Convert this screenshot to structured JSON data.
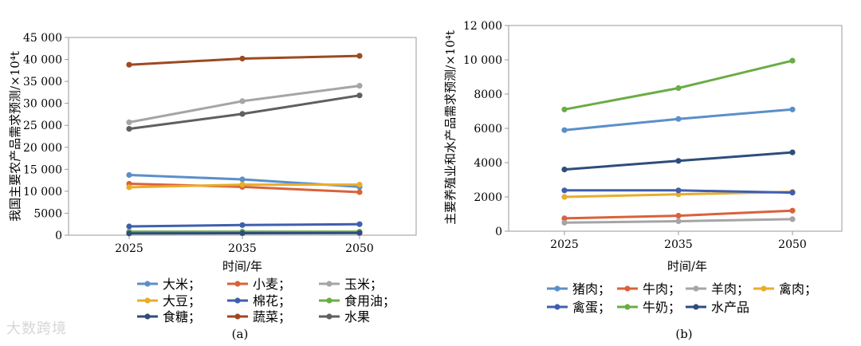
{
  "chart_data": [
    {
      "type": "line",
      "panel_label": "(a)",
      "title": "",
      "xlabel": "时间/年",
      "ylabel": "我国主要农产品需求预测/×10⁴t",
      "x": [
        2025,
        2035,
        2050
      ],
      "x_tick_labels": [
        "2025",
        "2035",
        "2050"
      ],
      "ylim": [
        0,
        45000
      ],
      "y_ticks": [
        0,
        5000,
        10000,
        15000,
        20000,
        25000,
        30000,
        35000,
        40000,
        45000
      ],
      "y_tick_labels": [
        "0",
        "5000",
        "10 000",
        "15 000",
        "20 000",
        "25 000",
        "30 000",
        "35 000",
        "40 000",
        "45 000"
      ],
      "legend_columns": 3,
      "series": [
        {
          "name": "大米；",
          "color": "#5b8fc9",
          "values": [
            13700,
            12700,
            11000
          ]
        },
        {
          "name": "小麦；",
          "color": "#d9623b",
          "values": [
            11700,
            11000,
            9800
          ]
        },
        {
          "name": "玉米；",
          "color": "#a5a5a5",
          "values": [
            25700,
            30500,
            34000
          ]
        },
        {
          "name": "大豆；",
          "color": "#e8ad2a",
          "values": [
            10900,
            11500,
            11500
          ]
        },
        {
          "name": "棉花；",
          "color": "#3f5fae",
          "values": [
            2000,
            2300,
            2500
          ]
        },
        {
          "name": "食用油；",
          "color": "#6aac46",
          "values": [
            800,
            800,
            800
          ]
        },
        {
          "name": "食糖；",
          "color": "#2e4d7c",
          "values": [
            400,
            450,
            500
          ]
        },
        {
          "name": "蔬菜；",
          "color": "#9c4a22",
          "values": [
            38800,
            40200,
            40800
          ]
        },
        {
          "name": "水果",
          "color": "#5f5f5f",
          "values": [
            24200,
            27600,
            31800
          ]
        }
      ]
    },
    {
      "type": "line",
      "panel_label": "(b)",
      "title": "",
      "xlabel": "时间/年",
      "ylabel": "主要养殖业和水产品需求预测/×10⁴t",
      "x": [
        2025,
        2035,
        2050
      ],
      "x_tick_labels": [
        "2025",
        "2035",
        "2050"
      ],
      "ylim": [
        0,
        12000
      ],
      "y_ticks": [
        0,
        2000,
        4000,
        6000,
        8000,
        10000,
        12000
      ],
      "y_tick_labels": [
        "0",
        "2000",
        "4000",
        "6000",
        "8000",
        "10 000",
        "12 000"
      ],
      "legend_columns": 4,
      "series": [
        {
          "name": "猪肉；",
          "color": "#5b8fc9",
          "values": [
            5900,
            6550,
            7100
          ]
        },
        {
          "name": "牛肉；",
          "color": "#d9623b",
          "values": [
            750,
            900,
            1200
          ]
        },
        {
          "name": "羊肉；",
          "color": "#a5a5a5",
          "values": [
            500,
            580,
            700
          ]
        },
        {
          "name": "禽肉；",
          "color": "#e8ad2a",
          "values": [
            2000,
            2150,
            2300
          ]
        },
        {
          "name": "禽蛋；",
          "color": "#3f5fae",
          "values": [
            2380,
            2380,
            2250
          ]
        },
        {
          "name": "牛奶；",
          "color": "#6aac46",
          "values": [
            7100,
            8350,
            9950
          ]
        },
        {
          "name": "水产品",
          "color": "#2e4d7c",
          "values": [
            3600,
            4100,
            4600
          ]
        }
      ]
    }
  ],
  "watermark": "大数跨境"
}
